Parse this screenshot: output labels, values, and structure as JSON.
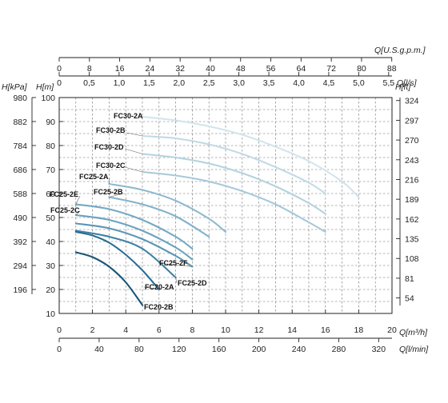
{
  "chart_data": {
    "type": "line",
    "title": "",
    "axes": {
      "q_m3h": {
        "label": "Q[m³/h]",
        "range": [
          0,
          20
        ],
        "ticks": [
          0,
          2,
          4,
          6,
          8,
          10,
          12,
          14,
          16,
          18,
          20
        ]
      },
      "q_lmin": {
        "label": "Q[l/min]",
        "range": [
          0,
          333.33
        ],
        "ticks": [
          0,
          40,
          80,
          120,
          160,
          200,
          240,
          280,
          320
        ]
      },
      "q_ls": {
        "label": "Q[l/s]",
        "range": [
          0,
          5.556
        ],
        "ticks": [
          "0",
          "0,5",
          "1,0",
          "1,5",
          "2,0",
          "2,5",
          "3,0",
          "3,5",
          "4,0",
          "4,5",
          "5,0",
          "5,5"
        ]
      },
      "q_usgpm": {
        "label": "Q[U.S.g.p.m.]",
        "range": [
          0,
          88.06
        ],
        "ticks": [
          0,
          8,
          16,
          24,
          32,
          40,
          48,
          56,
          64,
          72,
          80,
          88
        ]
      },
      "h_m": {
        "label": "H[m]",
        "range": [
          10,
          100
        ],
        "ticks": [
          10,
          20,
          30,
          40,
          50,
          60,
          70,
          80,
          90,
          100
        ]
      },
      "h_kpa": {
        "label": "H[kPa]",
        "ticks": [
          196,
          294,
          392,
          490,
          588,
          686,
          784,
          882,
          980
        ]
      },
      "h_ft": {
        "label": "H[ft]",
        "ticks": [
          54,
          81,
          108,
          135,
          162,
          189,
          216,
          243,
          270,
          297,
          324
        ]
      }
    },
    "grid": true,
    "series": [
      {
        "name": "FC30-2A",
        "x": [
          5,
          7,
          9,
          11,
          13,
          15,
          17,
          18
        ],
        "y": [
          92,
          90.5,
          88,
          84.5,
          79.5,
          73.5,
          65,
          58.5
        ]
      },
      {
        "name": "FC30-2B",
        "x": [
          5,
          7,
          9,
          11,
          13,
          15,
          16
        ],
        "y": [
          84,
          83,
          80.5,
          76.5,
          71,
          64.5,
          60
        ]
      },
      {
        "name": "FC30-2D",
        "x": [
          5,
          7,
          9,
          11,
          13,
          15,
          16
        ],
        "y": [
          76.5,
          75,
          72.5,
          68.5,
          63,
          56,
          51.5
        ]
      },
      {
        "name": "FC30-2C",
        "x": [
          5,
          7,
          9,
          11,
          13,
          15,
          16
        ],
        "y": [
          69,
          67.5,
          65,
          61,
          55.5,
          48,
          44
        ]
      },
      {
        "name": "FC25-2A",
        "x": [
          3,
          5,
          7,
          9,
          10
        ],
        "y": [
          64,
          61.5,
          57,
          49.5,
          44
        ]
      },
      {
        "name": "FC25-2B",
        "x": [
          3,
          5,
          7,
          9
        ],
        "y": [
          58.5,
          55.5,
          50.5,
          42
        ]
      },
      {
        "name": "FC25-2E",
        "x": [
          1,
          3,
          5,
          7,
          8
        ],
        "y": [
          55.5,
          53.5,
          49,
          42,
          37
        ]
      },
      {
        "name": "FC25-2C",
        "x": [
          1,
          3,
          5,
          7,
          8
        ],
        "y": [
          51,
          49,
          44.5,
          37.5,
          32.5
        ]
      },
      {
        "name": "FC25-2F",
        "x": [
          1,
          3,
          5,
          7,
          8
        ],
        "y": [
          47.5,
          45.5,
          41,
          34,
          29.5
        ]
      },
      {
        "name": "FC25-2D",
        "x": [
          1,
          3,
          5,
          7
        ],
        "y": [
          44.5,
          42,
          37,
          25
        ]
      },
      {
        "name": "FC20-2A",
        "x": [
          1,
          2,
          3,
          4,
          5,
          6
        ],
        "y": [
          44,
          42.5,
          39.5,
          34.5,
          28,
          20
        ]
      },
      {
        "name": "FC20-2B",
        "x": [
          1,
          2,
          3,
          4,
          5
        ],
        "y": [
          35.5,
          33.5,
          29.5,
          23,
          13.5
        ]
      }
    ],
    "colors": [
      "#d2e4ec",
      "#c2dae6",
      "#b4d2e0",
      "#a6c9da",
      "#8fbacf",
      "#82b2ca",
      "#74a9c4",
      "#6aa2bf",
      "#5a96b6",
      "#3f82a6",
      "#2a6e92",
      "#175676"
    ]
  }
}
